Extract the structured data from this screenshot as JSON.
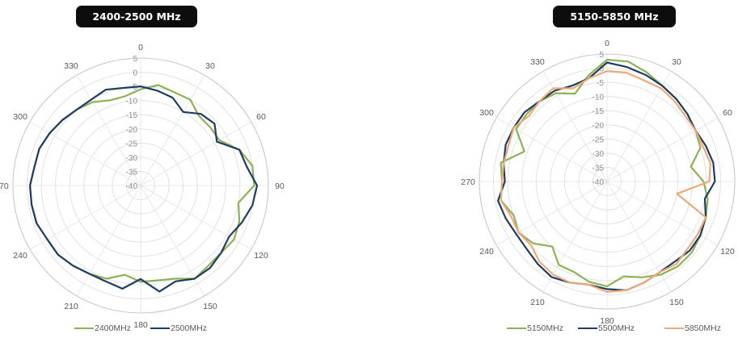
{
  "charts": {
    "left_title": "2400-2500 MHz",
    "right_title": "5150-5850 MHz"
  },
  "chart_data": [
    {
      "type": "radar",
      "title": "2400-2500 MHz",
      "angles": [
        0,
        30,
        60,
        90,
        120,
        150,
        180,
        210,
        240,
        270,
        300,
        330
      ],
      "angle_labels": [
        "0",
        "30",
        "60",
        "90",
        "120",
        "150",
        "180",
        "210",
        "240",
        "270",
        "300",
        "330"
      ],
      "radial_labels": [
        "5",
        "0",
        "-5",
        "-10",
        "-15",
        "-20",
        "-25",
        "-30",
        "-35",
        "-40"
      ],
      "rlim": [
        -40,
        5
      ],
      "grid": true,
      "legend": "bottom",
      "series": [
        {
          "name": "2400MHz",
          "color": "#8db255",
          "theta": [
            0,
            10,
            20,
            30,
            40,
            50,
            60,
            70,
            80,
            90,
            100,
            110,
            120,
            130,
            140,
            150,
            160,
            170,
            180,
            190,
            200,
            210,
            220,
            230,
            240,
            250,
            260,
            270,
            280,
            290,
            300,
            310,
            320,
            330,
            340,
            350
          ],
          "r": [
            -6,
            -4,
            -5,
            -5,
            -8,
            -8,
            -8,
            -3,
            0,
            0,
            -5,
            -3,
            -2,
            -3,
            -3,
            -2,
            -5,
            -6,
            -6,
            -8,
            -5,
            -4,
            -3,
            -2,
            -2,
            -1,
            -1,
            -1,
            -2,
            -2,
            -3,
            -4,
            -5,
            -6,
            -8,
            -8
          ]
        },
        {
          "name": "2500MHz",
          "color": "#1f3c64",
          "theta": [
            0,
            10,
            20,
            30,
            40,
            50,
            60,
            70,
            80,
            90,
            100,
            110,
            120,
            130,
            140,
            150,
            160,
            170,
            180,
            190,
            200,
            210,
            220,
            230,
            240,
            250,
            260,
            270,
            280,
            290,
            300,
            310,
            320,
            330,
            340,
            350
          ],
          "r": [
            -5,
            -6,
            -7,
            -10,
            -7,
            -6,
            -9,
            -3,
            -2,
            1,
            0,
            -2,
            -4,
            -3,
            -2,
            -2,
            -4,
            -2,
            -7,
            -3,
            -4,
            -4,
            -3,
            -2,
            -2,
            -1,
            -1,
            -1,
            -2,
            -2,
            -3,
            -4,
            -5,
            -5,
            -4,
            -5
          ]
        }
      ]
    },
    {
      "type": "radar",
      "title": "5150-5850 MHz",
      "angles": [
        0,
        30,
        60,
        90,
        120,
        150,
        180,
        210,
        240,
        270,
        300,
        330
      ],
      "angle_labels": [
        "0",
        "30",
        "60",
        "90",
        "120",
        "150",
        "180",
        "210",
        "240",
        "270",
        "300",
        "330"
      ],
      "radial_labels": [
        "5",
        "0",
        "-5",
        "-10",
        "-15",
        "-20",
        "-25",
        "-30",
        "-35",
        "-40"
      ],
      "rlim": [
        -40,
        5
      ],
      "grid": true,
      "legend": "bottom",
      "series": [
        {
          "name": "5150MHz",
          "color": "#8db255",
          "theta": [
            0,
            10,
            20,
            30,
            40,
            50,
            60,
            70,
            80,
            90,
            100,
            110,
            120,
            130,
            140,
            150,
            160,
            170,
            180,
            190,
            200,
            210,
            220,
            230,
            240,
            250,
            260,
            270,
            280,
            290,
            300,
            310,
            320,
            330,
            340,
            350
          ],
          "r": [
            3,
            3,
            1,
            -1,
            -2,
            -3,
            -4,
            -5,
            -10,
            -6,
            -4,
            -3,
            -2,
            -1,
            -1,
            -2,
            -4,
            -6,
            -3,
            -4,
            -6,
            -6,
            -10,
            -6,
            -4,
            -5,
            -2,
            -3,
            -2,
            -9,
            -3,
            -3,
            -3,
            -4,
            -7,
            -2
          ]
        },
        {
          "name": "5500MHz",
          "color": "#1f3c64",
          "theta": [
            0,
            10,
            20,
            30,
            40,
            50,
            60,
            70,
            80,
            90,
            100,
            110,
            120,
            130,
            140,
            150,
            160,
            170,
            180,
            190,
            200,
            210,
            220,
            230,
            240,
            250,
            260,
            270,
            280,
            290,
            300,
            310,
            320,
            330,
            340,
            350
          ],
          "r": [
            2,
            1,
            0,
            -1,
            -2,
            -3,
            -4,
            -3,
            -2,
            -2,
            -5,
            -3,
            -2,
            -2,
            -3,
            -3,
            -2,
            -1,
            -2,
            -3,
            -2,
            -1,
            -2,
            -3,
            -3,
            -2,
            -1,
            -4,
            -3,
            -2,
            -2,
            -2,
            -3,
            -3,
            -4,
            -3
          ]
        },
        {
          "name": "5850MHz",
          "color": "#f0a878",
          "theta": [
            0,
            10,
            20,
            30,
            40,
            50,
            60,
            70,
            80,
            90,
            100,
            110,
            120,
            130,
            140,
            150,
            160,
            170,
            180,
            190,
            200,
            210,
            220,
            230,
            240,
            250,
            260,
            270,
            280,
            290,
            300,
            310,
            320,
            330,
            340,
            350
          ],
          "r": [
            -1,
            -1,
            -2,
            -2,
            -3,
            -4,
            -4,
            -4,
            -3,
            -4,
            -15,
            -3,
            -3,
            -3,
            -2,
            -3,
            -2,
            -1,
            -1,
            -3,
            -2,
            -2,
            -3,
            -5,
            -4,
            -4,
            -2,
            -3,
            -3,
            -3,
            -2,
            -4,
            -3,
            -2,
            -5,
            -3
          ]
        }
      ]
    }
  ]
}
